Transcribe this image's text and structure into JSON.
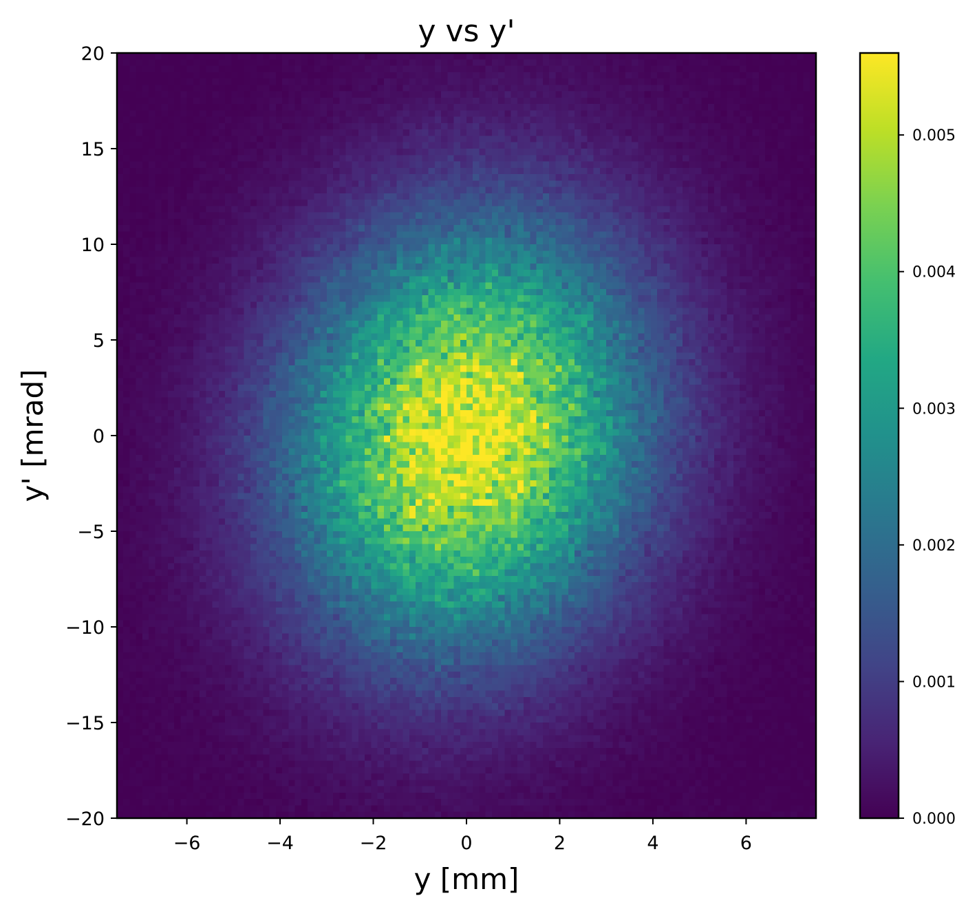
{
  "chart_data": {
    "type": "heatmap",
    "title": "y vs y'",
    "xlabel": "y [mm]",
    "ylabel": "y' [mrad]",
    "xlim": [
      -7.5,
      7.5
    ],
    "ylim": [
      -20,
      20
    ],
    "x_ticks": [
      -6,
      -4,
      -2,
      0,
      2,
      4,
      6
    ],
    "x_tick_labels": [
      "−6",
      "−4",
      "−2",
      "0",
      "2",
      "4",
      "6"
    ],
    "y_ticks": [
      -20,
      -15,
      -10,
      -5,
      0,
      5,
      10,
      15,
      20
    ],
    "y_tick_labels": [
      "−20",
      "−15",
      "−10",
      "−5",
      "0",
      "5",
      "10",
      "15",
      "20"
    ],
    "colormap": "viridis",
    "colorbar": {
      "range": [
        0,
        0.0056
      ],
      "ticks": [
        0,
        0.001,
        0.002,
        0.003,
        0.004,
        0.005
      ],
      "tick_labels": [
        "0.000",
        "0.001",
        "0.002",
        "0.003",
        "0.004",
        "0.005"
      ]
    },
    "distribution": {
      "kind": "2d-gaussian-histogram",
      "bins": [
        110,
        120
      ],
      "center": [
        0,
        0
      ],
      "sigma_x_mm": 2.6,
      "sigma_y_mrad": 7.5,
      "correlation": 0.1,
      "peak_density": 0.0055
    },
    "grid": false,
    "legend": "none"
  }
}
